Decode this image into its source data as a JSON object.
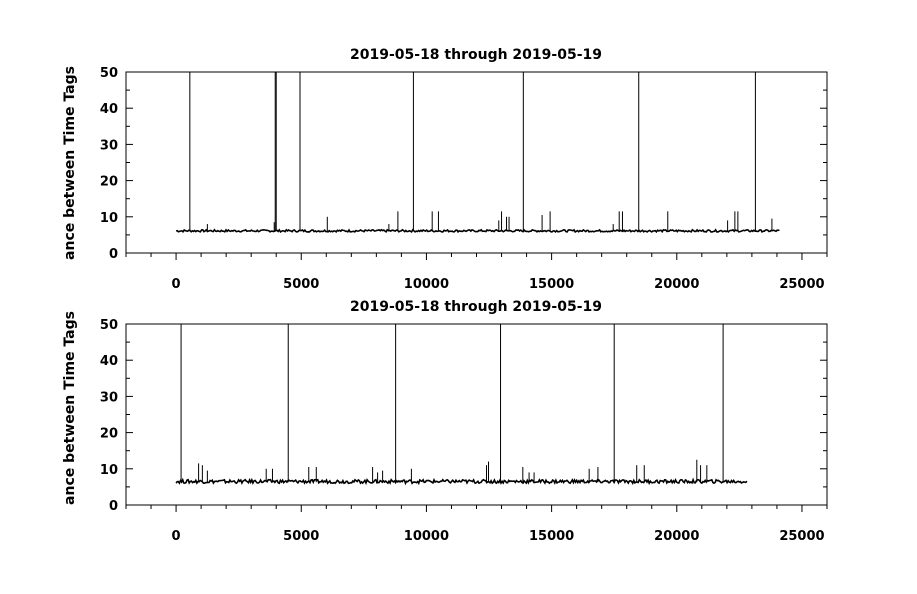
{
  "chart_data": [
    {
      "type": "line",
      "title": "2019-05-18 through 2019-05-19",
      "ylabel": "ance between Time Tags",
      "xlabel": "",
      "xlim": [
        -2000,
        26000
      ],
      "ylim": [
        0,
        50
      ],
      "x_ticks": [
        0,
        5000,
        10000,
        15000,
        20000,
        25000
      ],
      "y_ticks": [
        0,
        10,
        20,
        30,
        40,
        50
      ],
      "grid": false,
      "baseline": {
        "x_start": 0,
        "x_end": 24100,
        "y": 6.0,
        "y_noise": 0.6
      },
      "spikes": [
        {
          "x": 550,
          "y": 50
        },
        {
          "x": 3960,
          "y": 50
        },
        {
          "x": 4000,
          "y": 50
        },
        {
          "x": 4950,
          "y": 50
        },
        {
          "x": 9480,
          "y": 50
        },
        {
          "x": 13870,
          "y": 50
        },
        {
          "x": 18480,
          "y": 50
        },
        {
          "x": 23140,
          "y": 50
        },
        {
          "x": 1250,
          "y": 8
        },
        {
          "x": 3920,
          "y": 8.5
        },
        {
          "x": 6040,
          "y": 10
        },
        {
          "x": 8500,
          "y": 8
        },
        {
          "x": 8860,
          "y": 11.5
        },
        {
          "x": 10230,
          "y": 11.5
        },
        {
          "x": 10480,
          "y": 11.5
        },
        {
          "x": 12890,
          "y": 9
        },
        {
          "x": 13000,
          "y": 11.5
        },
        {
          "x": 13200,
          "y": 10
        },
        {
          "x": 13300,
          "y": 10
        },
        {
          "x": 14620,
          "y": 10.5
        },
        {
          "x": 14940,
          "y": 11.5
        },
        {
          "x": 17460,
          "y": 8
        },
        {
          "x": 17700,
          "y": 11.5
        },
        {
          "x": 17830,
          "y": 11.5
        },
        {
          "x": 19640,
          "y": 11.5
        },
        {
          "x": 22030,
          "y": 9
        },
        {
          "x": 22320,
          "y": 11.5
        },
        {
          "x": 22440,
          "y": 11.5
        },
        {
          "x": 23800,
          "y": 9.5
        }
      ]
    },
    {
      "type": "line",
      "title": "2019-05-18 through 2019-05-19",
      "ylabel": "ance between Time Tags",
      "xlabel": "",
      "xlim": [
        -2000,
        26000
      ],
      "ylim": [
        0,
        50
      ],
      "x_ticks": [
        0,
        5000,
        10000,
        15000,
        20000,
        25000
      ],
      "y_ticks": [
        0,
        10,
        20,
        30,
        40,
        50
      ],
      "grid": false,
      "baseline": {
        "x_start": 0,
        "x_end": 22800,
        "y": 6.3,
        "y_noise": 1.0
      },
      "spikes": [
        {
          "x": 200,
          "y": 50
        },
        {
          "x": 4480,
          "y": 50
        },
        {
          "x": 8770,
          "y": 50
        },
        {
          "x": 12960,
          "y": 50
        },
        {
          "x": 17500,
          "y": 50
        },
        {
          "x": 21850,
          "y": 50
        },
        {
          "x": 900,
          "y": 11.5
        },
        {
          "x": 1050,
          "y": 11
        },
        {
          "x": 1250,
          "y": 9.5
        },
        {
          "x": 3600,
          "y": 10
        },
        {
          "x": 3850,
          "y": 10
        },
        {
          "x": 5300,
          "y": 10.5
        },
        {
          "x": 5600,
          "y": 10.5
        },
        {
          "x": 7850,
          "y": 10.5
        },
        {
          "x": 8050,
          "y": 9
        },
        {
          "x": 8250,
          "y": 9.5
        },
        {
          "x": 9400,
          "y": 10
        },
        {
          "x": 12400,
          "y": 11
        },
        {
          "x": 12480,
          "y": 12
        },
        {
          "x": 13850,
          "y": 10.5
        },
        {
          "x": 14100,
          "y": 9
        },
        {
          "x": 14300,
          "y": 9
        },
        {
          "x": 16500,
          "y": 10
        },
        {
          "x": 16850,
          "y": 10.5
        },
        {
          "x": 18400,
          "y": 11
        },
        {
          "x": 18700,
          "y": 11
        },
        {
          "x": 20800,
          "y": 12.5
        },
        {
          "x": 20950,
          "y": 11
        },
        {
          "x": 21200,
          "y": 11
        }
      ]
    }
  ]
}
